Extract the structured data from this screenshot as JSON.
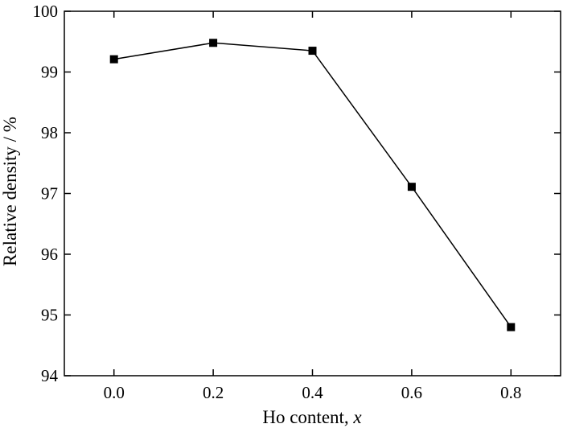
{
  "chart_data": {
    "type": "line",
    "x": [
      0.0,
      0.2,
      0.4,
      0.6,
      0.8
    ],
    "series": [
      {
        "values": [
          99.21,
          99.48,
          99.35,
          97.11,
          94.8
        ]
      }
    ],
    "xlabel_prefix": "Ho content, ",
    "xlabel_var": "x",
    "ylabel": "Relative density / %",
    "xlim": [
      -0.1,
      0.9
    ],
    "ylim": [
      94,
      100
    ],
    "xticks": [
      "0.0",
      "0.2",
      "0.4",
      "0.6",
      "0.8"
    ],
    "yticks": [
      "94",
      "95",
      "96",
      "97",
      "98",
      "99",
      "100"
    ],
    "grid": false,
    "marker": "square",
    "line_color": "#000000",
    "marker_color": "#000000"
  }
}
